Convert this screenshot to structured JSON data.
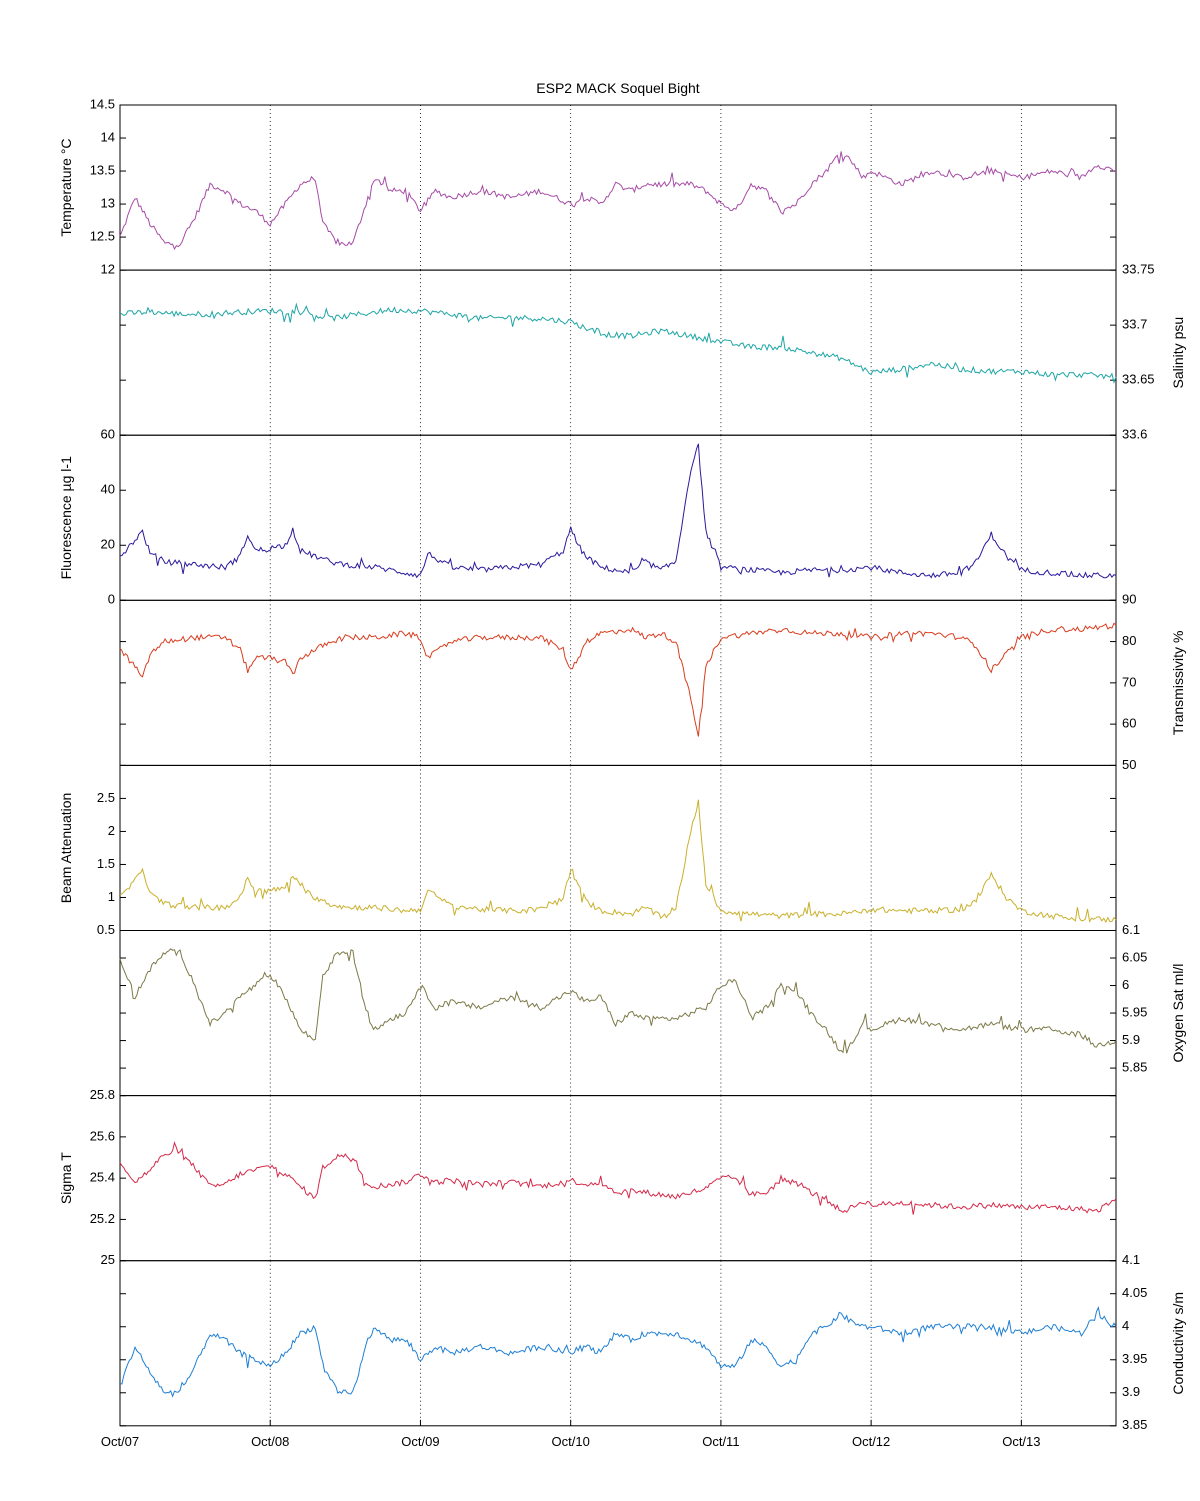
{
  "figure": {
    "title": "ESP2 MACK  Soquel Bight",
    "x_ticks": [
      "Oct/07",
      "Oct/08",
      "Oct/09",
      "Oct/10",
      "Oct/11",
      "Oct/12",
      "Oct/13"
    ]
  },
  "chart_data": [
    {
      "type": "line",
      "ylabel": "Temperature °C",
      "axis_side": "left",
      "color": "#a64ca6",
      "ylim": [
        12,
        14.5
      ],
      "yticks": [
        12,
        12.5,
        13,
        13.5,
        14,
        14.5
      ],
      "ytick_labels": [
        "12",
        "12.5",
        "13",
        "13.5",
        "14",
        "14.5"
      ],
      "xlim": [
        0,
        6.63
      ],
      "x": [
        0,
        0.1,
        0.2,
        0.3,
        0.4,
        0.5,
        0.6,
        0.7,
        0.8,
        0.9,
        1.0,
        1.1,
        1.2,
        1.3,
        1.35,
        1.45,
        1.55,
        1.65,
        1.7,
        1.8,
        1.9,
        2.0,
        2.1,
        2.2,
        2.4,
        2.6,
        2.8,
        3.0,
        3.1,
        3.2,
        3.3,
        3.4,
        3.5,
        3.6,
        3.7,
        3.8,
        3.9,
        4.0,
        4.1,
        4.2,
        4.3,
        4.4,
        4.5,
        4.6,
        4.7,
        4.8,
        4.85,
        4.95,
        5.0,
        5.2,
        5.4,
        5.6,
        5.8,
        6.0,
        6.2,
        6.4,
        6.5,
        6.63
      ],
      "y": [
        12.5,
        13.1,
        12.7,
        12.4,
        12.4,
        12.8,
        13.3,
        13.2,
        13.0,
        12.9,
        12.7,
        13.0,
        13.3,
        13.4,
        12.7,
        12.4,
        12.4,
        13.1,
        13.4,
        13.2,
        13.2,
        12.9,
        13.2,
        13.1,
        13.2,
        13.1,
        13.2,
        13.0,
        13.1,
        13.0,
        13.3,
        13.2,
        13.3,
        13.3,
        13.3,
        13.3,
        13.2,
        13.0,
        12.9,
        13.3,
        13.2,
        12.9,
        13.0,
        13.3,
        13.5,
        13.8,
        13.7,
        13.4,
        13.5,
        13.3,
        13.5,
        13.4,
        13.5,
        13.4,
        13.5,
        13.4,
        13.6,
        13.5
      ]
    },
    {
      "type": "line",
      "ylabel": "Salinity psu",
      "axis_side": "right",
      "color": "#1fa5a5",
      "ylim": [
        33.6,
        33.75
      ],
      "yticks": [
        33.6,
        33.65,
        33.7,
        33.75
      ],
      "ytick_labels": [
        "33.6",
        "33.65",
        "33.7",
        "33.75"
      ],
      "xlim": [
        0,
        6.63
      ],
      "x": [
        0,
        0.2,
        0.4,
        0.6,
        0.8,
        1.0,
        1.2,
        1.4,
        1.6,
        1.8,
        2.0,
        2.2,
        2.4,
        2.6,
        2.8,
        3.0,
        3.2,
        3.4,
        3.6,
        3.8,
        4.0,
        4.2,
        4.4,
        4.6,
        4.8,
        5.0,
        5.2,
        5.4,
        5.6,
        5.8,
        6.0,
        6.2,
        6.4,
        6.63
      ],
      "y": [
        33.71,
        33.712,
        33.71,
        33.71,
        33.712,
        33.713,
        33.712,
        33.706,
        33.71,
        33.714,
        33.713,
        33.71,
        33.706,
        33.707,
        33.706,
        33.703,
        33.692,
        33.69,
        33.695,
        33.69,
        33.685,
        33.68,
        33.68,
        33.675,
        33.67,
        33.657,
        33.66,
        33.665,
        33.66,
        33.658,
        33.658,
        33.655,
        33.655,
        33.653
      ]
    },
    {
      "type": "line",
      "ylabel": "Fluorescence µg l-1",
      "axis_side": "left",
      "color": "#2a1a9c",
      "ylim": [
        0,
        60
      ],
      "yticks": [
        0,
        20,
        40,
        60
      ],
      "ytick_labels": [
        "0",
        "20",
        "40",
        "60"
      ],
      "xlim": [
        0,
        6.63
      ],
      "x": [
        0,
        0.1,
        0.15,
        0.2,
        0.3,
        0.5,
        0.7,
        0.8,
        0.85,
        0.9,
        1.0,
        1.1,
        1.15,
        1.2,
        1.3,
        1.4,
        1.5,
        1.7,
        1.9,
        2.0,
        2.05,
        2.2,
        2.4,
        2.6,
        2.8,
        2.95,
        3.0,
        3.05,
        3.1,
        3.2,
        3.4,
        3.5,
        3.6,
        3.7,
        3.8,
        3.85,
        3.9,
        4.0,
        4.2,
        4.4,
        4.6,
        4.8,
        5.0,
        5.2,
        5.4,
        5.6,
        5.7,
        5.8,
        5.9,
        6.0,
        6.2,
        6.4,
        6.63
      ],
      "y": [
        16,
        22,
        25,
        17,
        14,
        13,
        12,
        16,
        24,
        18,
        19,
        20,
        26,
        18,
        16,
        14,
        13,
        12,
        10,
        9,
        17,
        12,
        11,
        12,
        13,
        18,
        26,
        20,
        16,
        12,
        10,
        14,
        11,
        14,
        48,
        56,
        25,
        12,
        11,
        10,
        11,
        11,
        12,
        10,
        9,
        10,
        14,
        24,
        16,
        11,
        10,
        9,
        9
      ]
    },
    {
      "type": "line",
      "ylabel": "Transmissivity %",
      "axis_side": "right",
      "color": "#d83d1f",
      "ylim": [
        50,
        90
      ],
      "yticks": [
        50,
        60,
        70,
        80,
        90
      ],
      "ytick_labels": [
        "50",
        "60",
        "70",
        "80",
        "90"
      ],
      "xlim": [
        0,
        6.63
      ],
      "x": [
        0,
        0.1,
        0.15,
        0.2,
        0.3,
        0.5,
        0.7,
        0.8,
        0.85,
        0.9,
        1.0,
        1.1,
        1.15,
        1.2,
        1.3,
        1.4,
        1.5,
        1.7,
        1.9,
        2.0,
        2.05,
        2.2,
        2.4,
        2.6,
        2.8,
        2.95,
        3.0,
        3.05,
        3.1,
        3.2,
        3.4,
        3.5,
        3.6,
        3.7,
        3.8,
        3.85,
        3.9,
        4.0,
        4.2,
        4.4,
        4.6,
        4.8,
        5.0,
        5.2,
        5.4,
        5.6,
        5.7,
        5.8,
        5.9,
        6.0,
        6.2,
        6.4,
        6.63
      ],
      "y": [
        78,
        74,
        71,
        77,
        80,
        81,
        81,
        78,
        73,
        76,
        76,
        75,
        72,
        76,
        78,
        80,
        81,
        81,
        82,
        81,
        76,
        80,
        81,
        81,
        81,
        78,
        73,
        76,
        80,
        82,
        83,
        81,
        82,
        80,
        66,
        57,
        74,
        81,
        82,
        83,
        82,
        82,
        81,
        82,
        82,
        81,
        79,
        73,
        77,
        81,
        83,
        83,
        84
      ]
    },
    {
      "type": "line",
      "ylabel": "Beam Attenuation",
      "axis_side": "left",
      "color": "#c9b02c",
      "ylim": [
        0.5,
        3
      ],
      "yticks": [
        0.5,
        1,
        1.5,
        2,
        2.5
      ],
      "ytick_labels": [
        "0.5",
        "1",
        "1.5",
        "2",
        "2.5"
      ],
      "xlim": [
        0,
        6.63
      ],
      "x": [
        0,
        0.1,
        0.15,
        0.2,
        0.3,
        0.5,
        0.7,
        0.8,
        0.85,
        0.9,
        1.0,
        1.1,
        1.15,
        1.2,
        1.3,
        1.4,
        1.5,
        1.7,
        1.9,
        2.0,
        2.05,
        2.2,
        2.4,
        2.6,
        2.8,
        2.95,
        3.0,
        3.05,
        3.1,
        3.2,
        3.4,
        3.5,
        3.6,
        3.7,
        3.8,
        3.85,
        3.9,
        4.0,
        4.2,
        4.4,
        4.6,
        4.8,
        5.0,
        5.2,
        5.4,
        5.6,
        5.7,
        5.8,
        5.9,
        6.0,
        6.2,
        6.4,
        6.63
      ],
      "y": [
        1.0,
        1.25,
        1.45,
        1.05,
        0.9,
        0.85,
        0.85,
        1.0,
        1.3,
        1.1,
        1.1,
        1.15,
        1.35,
        1.15,
        1.0,
        0.9,
        0.85,
        0.85,
        0.8,
        0.82,
        1.1,
        0.88,
        0.82,
        0.8,
        0.82,
        1.0,
        1.4,
        1.2,
        0.95,
        0.8,
        0.75,
        0.85,
        0.7,
        0.85,
        2.0,
        2.45,
        1.2,
        0.8,
        0.75,
        0.72,
        0.75,
        0.75,
        0.82,
        0.8,
        0.8,
        0.82,
        0.95,
        1.35,
        1.0,
        0.8,
        0.72,
        0.68,
        0.66
      ]
    },
    {
      "type": "line",
      "ylabel": "Oxygen Sat ml/l",
      "axis_side": "right",
      "color": "#7d7a48",
      "ylim": [
        5.8,
        6.1
      ],
      "yticks": [
        5.8,
        5.85,
        5.9,
        5.95,
        6.0,
        6.05,
        6.1
      ],
      "ytick_labels": [
        "",
        "5.85",
        "5.9",
        "5.95",
        "6",
        "6.05",
        "6.1"
      ],
      "xlim": [
        0,
        6.63
      ],
      "x": [
        0,
        0.1,
        0.2,
        0.3,
        0.4,
        0.5,
        0.6,
        0.7,
        0.8,
        0.9,
        1.0,
        1.1,
        1.2,
        1.3,
        1.35,
        1.45,
        1.55,
        1.65,
        1.7,
        1.8,
        1.9,
        2.0,
        2.1,
        2.2,
        2.4,
        2.6,
        2.8,
        3.0,
        3.1,
        3.2,
        3.3,
        3.4,
        3.5,
        3.6,
        3.7,
        3.8,
        3.9,
        4.0,
        4.1,
        4.2,
        4.3,
        4.4,
        4.5,
        4.6,
        4.7,
        4.8,
        4.85,
        4.95,
        5.0,
        5.2,
        5.4,
        5.6,
        5.8,
        6.0,
        6.2,
        6.4,
        6.5,
        6.63
      ],
      "y": [
        6.05,
        5.98,
        6.03,
        6.06,
        6.06,
        6.0,
        5.93,
        5.95,
        5.98,
        6.0,
        6.02,
        5.98,
        5.92,
        5.9,
        6.02,
        6.06,
        6.06,
        5.94,
        5.92,
        5.94,
        5.95,
        6.0,
        5.96,
        5.97,
        5.96,
        5.98,
        5.96,
        5.99,
        5.97,
        5.98,
        5.93,
        5.95,
        5.94,
        5.94,
        5.94,
        5.95,
        5.96,
        6.0,
        6.01,
        5.94,
        5.96,
        6.0,
        5.99,
        5.95,
        5.92,
        5.88,
        5.89,
        5.93,
        5.92,
        5.94,
        5.93,
        5.92,
        5.93,
        5.92,
        5.92,
        5.91,
        5.89,
        5.9
      ]
    },
    {
      "type": "line",
      "ylabel": "Sigma T",
      "axis_side": "left",
      "color": "#d42a4a",
      "ylim": [
        25,
        25.8
      ],
      "yticks": [
        25,
        25.2,
        25.4,
        25.6,
        25.8
      ],
      "ytick_labels": [
        "25",
        "25.2",
        "25.4",
        "25.6",
        "25.8"
      ],
      "xlim": [
        0,
        6.63
      ],
      "x": [
        0,
        0.1,
        0.2,
        0.3,
        0.4,
        0.5,
        0.6,
        0.7,
        0.8,
        0.9,
        1.0,
        1.1,
        1.2,
        1.3,
        1.35,
        1.45,
        1.55,
        1.65,
        1.7,
        1.8,
        1.9,
        2.0,
        2.1,
        2.2,
        2.4,
        2.6,
        2.8,
        3.0,
        3.1,
        3.2,
        3.3,
        3.4,
        3.5,
        3.6,
        3.7,
        3.8,
        3.9,
        4.0,
        4.1,
        4.2,
        4.3,
        4.4,
        4.5,
        4.6,
        4.7,
        4.8,
        4.85,
        4.95,
        5.0,
        5.2,
        5.4,
        5.6,
        5.8,
        6.0,
        6.2,
        6.4,
        6.5,
        6.63
      ],
      "y": [
        25.48,
        25.38,
        25.44,
        25.52,
        25.52,
        25.45,
        25.36,
        25.37,
        25.42,
        25.44,
        25.46,
        25.42,
        25.36,
        25.3,
        25.45,
        25.51,
        25.5,
        25.37,
        25.36,
        25.37,
        25.38,
        25.42,
        25.38,
        25.39,
        25.37,
        25.38,
        25.36,
        25.39,
        25.37,
        25.38,
        25.33,
        25.34,
        25.33,
        25.32,
        25.31,
        25.33,
        25.35,
        25.4,
        25.4,
        25.32,
        25.33,
        25.39,
        25.38,
        25.33,
        25.3,
        25.24,
        25.25,
        25.29,
        25.27,
        25.28,
        25.27,
        25.26,
        25.27,
        25.26,
        25.26,
        25.25,
        25.24,
        25.3
      ]
    },
    {
      "type": "line",
      "ylabel": "Conductivity s/m",
      "axis_side": "right",
      "color": "#1f7fd4",
      "ylim": [
        3.85,
        4.1
      ],
      "yticks": [
        3.85,
        3.9,
        3.95,
        4.0,
        4.05,
        4.1
      ],
      "ytick_labels": [
        "3.85",
        "3.9",
        "3.95",
        "4",
        "4.05",
        "4.1"
      ],
      "xlim": [
        0,
        6.63
      ],
      "x": [
        0,
        0.1,
        0.2,
        0.3,
        0.4,
        0.5,
        0.6,
        0.7,
        0.8,
        0.9,
        1.0,
        1.1,
        1.2,
        1.3,
        1.35,
        1.45,
        1.55,
        1.65,
        1.7,
        1.8,
        1.9,
        2.0,
        2.1,
        2.2,
        2.4,
        2.6,
        2.8,
        3.0,
        3.1,
        3.2,
        3.3,
        3.4,
        3.5,
        3.6,
        3.7,
        3.8,
        3.9,
        4.0,
        4.1,
        4.2,
        4.3,
        4.4,
        4.5,
        4.6,
        4.7,
        4.8,
        4.85,
        4.95,
        5.0,
        5.2,
        5.4,
        5.6,
        5.8,
        6.0,
        6.2,
        6.4,
        6.5,
        6.63
      ],
      "y": [
        3.91,
        3.97,
        3.93,
        3.9,
        3.9,
        3.94,
        3.99,
        3.98,
        3.96,
        3.95,
        3.94,
        3.96,
        3.99,
        4.0,
        3.94,
        3.9,
        3.9,
        3.98,
        4.0,
        3.98,
        3.98,
        3.95,
        3.97,
        3.96,
        3.97,
        3.96,
        3.97,
        3.96,
        3.97,
        3.96,
        3.99,
        3.98,
        3.99,
        3.99,
        3.99,
        3.98,
        3.97,
        3.94,
        3.94,
        3.98,
        3.97,
        3.94,
        3.95,
        3.99,
        4.0,
        4.02,
        4.01,
        4.0,
        4.0,
        3.99,
        4.0,
        4.0,
        4.0,
        3.99,
        4.0,
        3.99,
        4.02,
        4.0
      ]
    }
  ]
}
